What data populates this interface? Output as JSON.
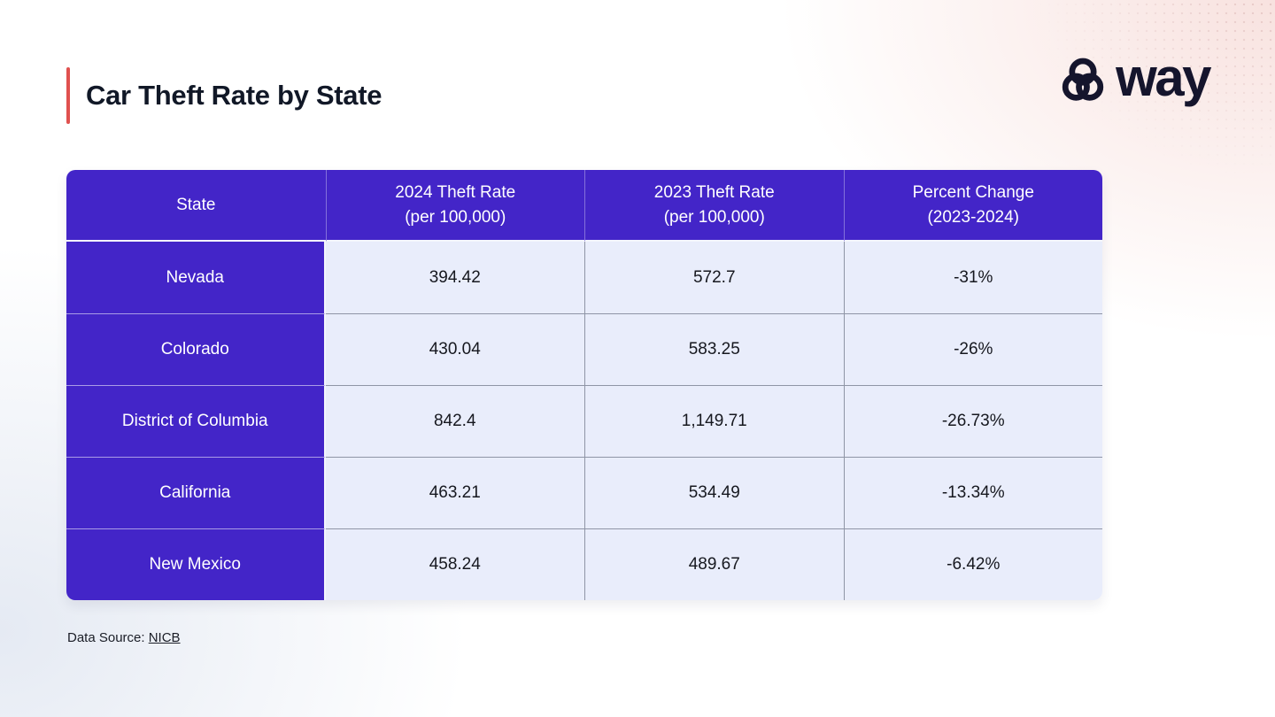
{
  "page": {
    "title": "Car Theft Rate by State",
    "source_prefix": "Data Source: ",
    "source_link": "NICB"
  },
  "logo": {
    "wordmark": "way",
    "icon": "way-knot-icon"
  },
  "colors": {
    "header_purple": "#4325C8",
    "cell_lavender": "#E9EDFB",
    "title_accent_red": "#E0514F",
    "logo_navy": "#15152D",
    "bg_pink": "#F8E2DF",
    "bg_blue": "#E5EAF3"
  },
  "chart_data": {
    "type": "table",
    "title": "Car Theft Rate by State",
    "columns": [
      "State",
      "2024 Theft Rate\n(per 100,000)",
      "2023 Theft Rate\n(per 100,000)",
      "Percent Change\n(2023-2024)"
    ],
    "rows": [
      [
        "Nevada",
        "394.42",
        "572.7",
        "-31%"
      ],
      [
        "Colorado",
        "430.04",
        "583.25",
        "-26%"
      ],
      [
        "District of Columbia",
        "842.4",
        "1,149.71",
        "-26.73%"
      ],
      [
        "California",
        "463.21",
        "534.49",
        "-13.34%"
      ],
      [
        "New Mexico",
        "458.24",
        "489.67",
        "-6.42%"
      ]
    ],
    "source": "NICB",
    "layout": {
      "legend": "none",
      "grid": "cell-borders"
    }
  }
}
